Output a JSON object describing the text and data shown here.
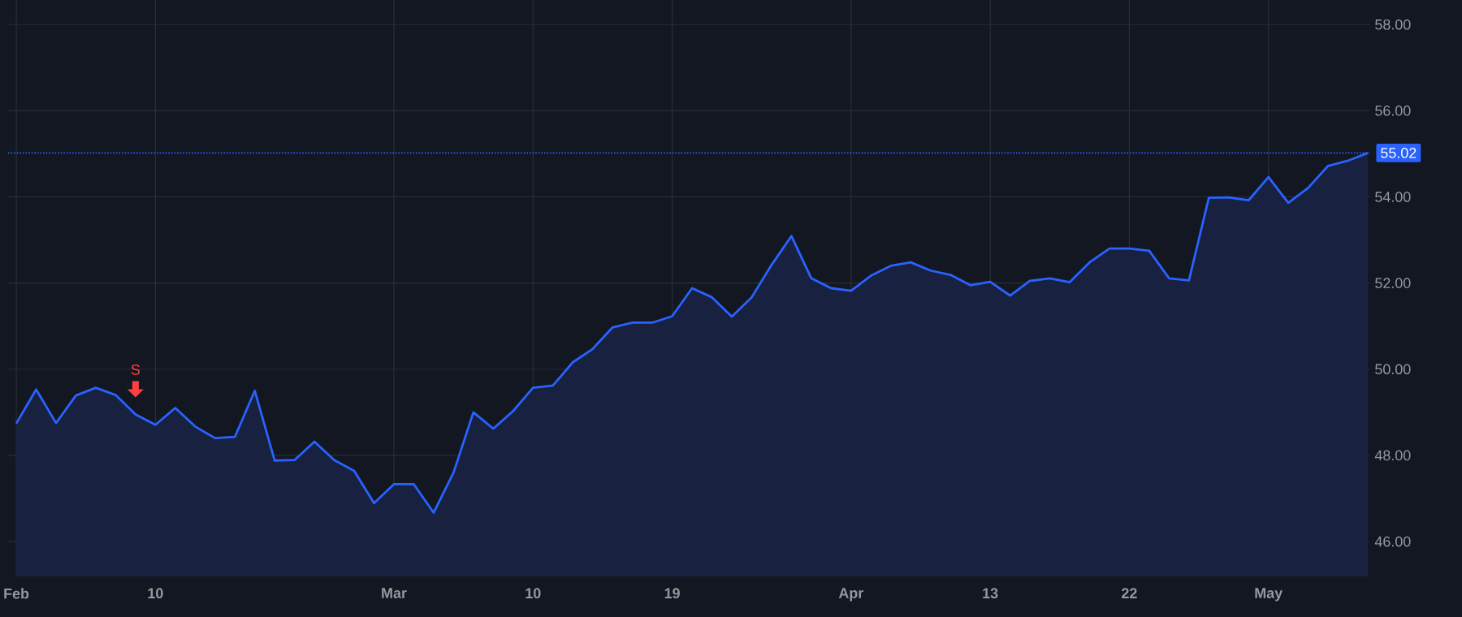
{
  "chart_data": {
    "type": "area",
    "categories": [
      "Feb",
      null,
      null,
      null,
      null,
      null,
      null,
      "10",
      null,
      null,
      null,
      null,
      null,
      null,
      null,
      null,
      null,
      null,
      null,
      "Mar",
      null,
      null,
      null,
      null,
      null,
      null,
      "10",
      null,
      null,
      null,
      null,
      null,
      null,
      "19",
      null,
      null,
      null,
      null,
      null,
      null,
      null,
      null,
      "Apr",
      null,
      null,
      null,
      null,
      null,
      null,
      "13",
      null,
      null,
      null,
      null,
      null,
      null,
      "22",
      null,
      null,
      null,
      null,
      null,
      null,
      "May",
      null,
      null,
      null,
      null,
      null
    ],
    "series": [
      {
        "color": "#2962ff",
        "values": [
          48.74,
          49.53,
          48.75,
          49.39,
          49.57,
          49.4,
          48.95,
          48.71,
          49.1,
          48.67,
          48.4,
          48.43,
          49.5,
          47.88,
          47.89,
          48.32,
          47.89,
          47.64,
          46.89,
          47.33,
          47.33,
          46.67,
          47.6,
          49.0,
          48.62,
          49.03,
          49.57,
          49.62,
          50.16,
          50.47,
          50.97,
          51.08,
          51.08,
          51.23,
          51.88,
          51.67,
          51.22,
          51.67,
          52.42,
          53.09,
          52.11,
          51.88,
          51.82,
          52.17,
          52.4,
          52.48,
          52.29,
          52.19,
          51.95,
          52.03,
          51.71,
          52.05,
          52.11,
          52.02,
          52.48,
          52.8,
          52.8,
          52.75,
          52.11,
          52.06,
          53.98,
          53.99,
          53.92,
          54.46,
          53.86,
          54.21,
          54.72,
          54.84,
          55.02
        ]
      }
    ],
    "ylim": [
      45.19,
      58.57
    ],
    "yticks": [
      {
        "value": 46,
        "label": "46.00"
      },
      {
        "value": 48,
        "label": "48.00"
      },
      {
        "value": 50,
        "label": "50.00"
      },
      {
        "value": 52,
        "label": "52.00"
      },
      {
        "value": 54,
        "label": "54.00"
      },
      {
        "value": 56,
        "label": "56.00"
      },
      {
        "value": 58,
        "label": "58.00"
      }
    ],
    "grid": true,
    "ref_lines": [
      {
        "axis": "y",
        "value": 55.02,
        "label": "55.02",
        "color": "#2962ff",
        "line_style": "dotted"
      }
    ],
    "annotations": [
      "S"
    ]
  }
}
